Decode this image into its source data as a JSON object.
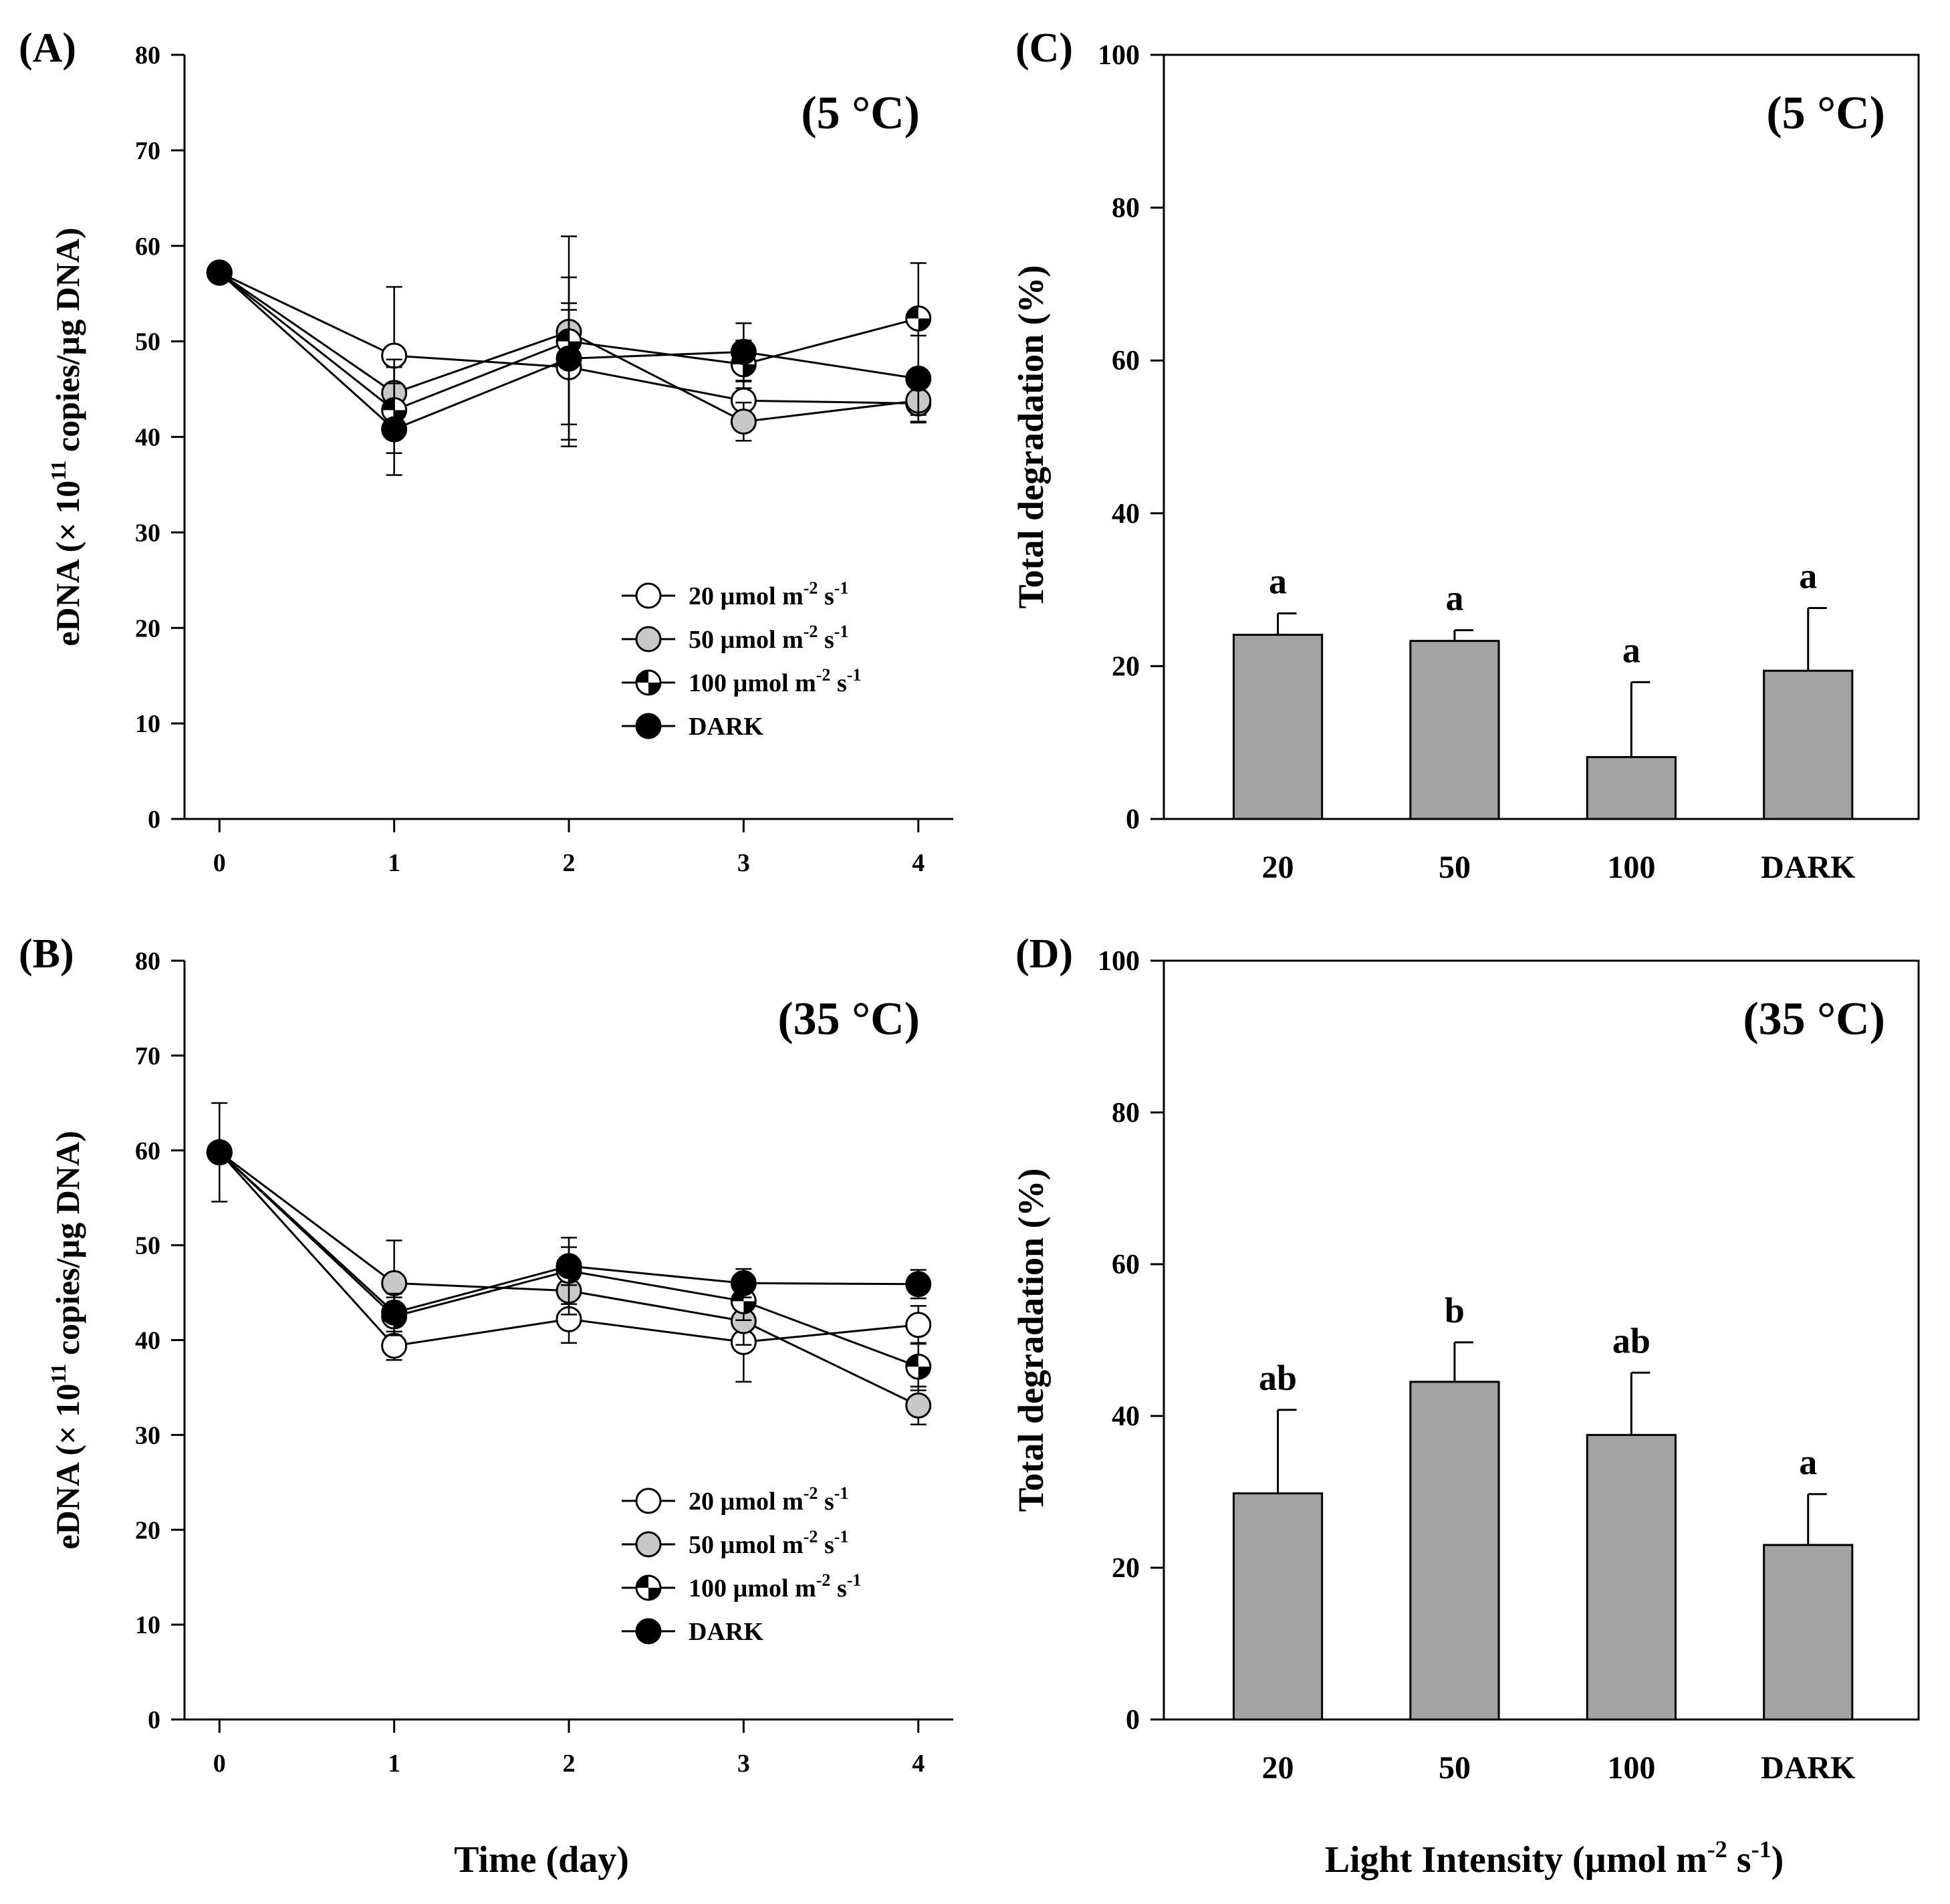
{
  "colors": {
    "ink": "#000000",
    "bar_fill": "#a3a3a3",
    "gray_marker": "#c8c8c8",
    "white_marker": "#ffffff"
  },
  "shared_labels": {
    "time_xlabel": "Time (day)",
    "light_xlabel_main": "Light Intensity (µmol m",
    "light_xlabel_sup1": "-2",
    "light_xlabel_mid": " s",
    "light_xlabel_sup2": "-1",
    "light_xlabel_end": ")"
  },
  "chart_data": [
    {
      "id": "A",
      "panel_label": "(A)",
      "type": "line",
      "annotation": "(5 °C)",
      "ylabel_pre": "eDNA (× 10",
      "ylabel_sup": "11",
      "ylabel_post": " copies/µg DNA)",
      "xlabel": "Time (day)",
      "x": [
        0,
        1,
        2,
        3,
        4
      ],
      "xlim": [
        -0.2,
        4.2
      ],
      "ylim": [
        0,
        80
      ],
      "xticks": [
        "0",
        "1",
        "2",
        "3",
        "4"
      ],
      "yticks": [
        0,
        10,
        20,
        30,
        40,
        50,
        60,
        70,
        80
      ],
      "legend": "inside-lower-right",
      "series": [
        {
          "name": "20 µmol m-2 s-1",
          "label_main": "20 µmol m",
          "sup1": "-2",
          "label_mid": " s",
          "sup2": "-1",
          "marker": "white",
          "values": [
            57.2,
            48.5,
            47.3,
            43.8,
            43.5
          ],
          "err": [
            0,
            7.2,
            6.0,
            2.0,
            2.0
          ]
        },
        {
          "name": "50 µmol m-2 s-1",
          "label_main": "50 µmol m",
          "sup1": "-2",
          "label_mid": " s",
          "sup2": "-1",
          "marker": "gray",
          "values": [
            57.2,
            44.6,
            51.0,
            41.6,
            43.8
          ],
          "err": [
            0,
            3.5,
            3.0,
            2.0,
            1.5
          ]
        },
        {
          "name": "100 µmol m-2 s-1",
          "label_main": "100 µmol m",
          "sup1": "-2",
          "label_mid": " s",
          "sup2": "-1",
          "marker": "half",
          "values": [
            57.2,
            42.8,
            50.0,
            47.6,
            52.4
          ],
          "err": [
            0,
            4.5,
            11.0,
            2.5,
            5.8
          ]
        },
        {
          "name": "DARK",
          "label_main": "DARK",
          "sup1": "",
          "label_mid": "",
          "sup2": "",
          "marker": "black",
          "values": [
            57.2,
            40.8,
            48.2,
            48.9,
            46.1
          ],
          "err": [
            0,
            4.8,
            8.5,
            3.0,
            4.5
          ]
        }
      ]
    },
    {
      "id": "B",
      "panel_label": "(B)",
      "type": "line",
      "annotation": "(35 °C)",
      "ylabel_pre": "eDNA (× 10",
      "ylabel_sup": "11",
      "ylabel_post": " copies/µg DNA)",
      "xlabel": "Time (day)",
      "x": [
        0,
        1,
        2,
        3,
        4
      ],
      "xlim": [
        -0.2,
        4.2
      ],
      "ylim": [
        0,
        80
      ],
      "xticks": [
        "0",
        "1",
        "2",
        "3",
        "4"
      ],
      "yticks": [
        0,
        10,
        20,
        30,
        40,
        50,
        60,
        70,
        80
      ],
      "legend": "inside-lower-right",
      "series": [
        {
          "name": "20 µmol m-2 s-1",
          "label_main": "20 µmol m",
          "sup1": "-2",
          "label_mid": " s",
          "sup2": "-1",
          "marker": "white",
          "values": [
            59.8,
            39.4,
            42.2,
            39.8,
            41.6
          ],
          "err": [
            0,
            1.5,
            2.5,
            4.2,
            2.0
          ]
        },
        {
          "name": "50 µmol m-2 s-1",
          "label_main": "50 µmol m",
          "sup1": "-2",
          "label_mid": " s",
          "sup2": "-1",
          "marker": "gray",
          "values": [
            59.8,
            46.0,
            45.2,
            42.0,
            33.1
          ],
          "err": [
            0,
            4.5,
            2.5,
            2.5,
            2.0
          ]
        },
        {
          "name": "100 µmol m-2 s-1",
          "label_main": "100 µmol m",
          "sup1": "-2",
          "label_mid": " s",
          "sup2": "-1",
          "marker": "half",
          "values": [
            59.8,
            42.5,
            47.3,
            44.1,
            37.2
          ],
          "err": [
            0,
            2.0,
            3.5,
            2.0,
            2.5
          ]
        },
        {
          "name": "DARK",
          "label_main": "DARK",
          "sup1": "",
          "label_mid": "",
          "sup2": "",
          "marker": "black",
          "values": [
            59.8,
            42.9,
            47.8,
            46.0,
            45.9
          ],
          "err": [
            5.2,
            2.0,
            2.0,
            1.5,
            1.5
          ]
        }
      ]
    },
    {
      "id": "C",
      "panel_label": "(C)",
      "type": "bar",
      "annotation": "(5 °C)",
      "ylabel": "Total degradation (%)",
      "categories": [
        "20",
        "50",
        "100",
        "DARK"
      ],
      "values": [
        24.1,
        23.3,
        8.1,
        19.4
      ],
      "err": [
        2.8,
        1.4,
        9.8,
        8.2
      ],
      "letters": [
        "a",
        "a",
        "a",
        "a"
      ],
      "ylim": [
        0,
        100
      ],
      "yticks": [
        0,
        20,
        40,
        60,
        80,
        100
      ]
    },
    {
      "id": "D",
      "panel_label": "(D)",
      "type": "bar",
      "annotation": "(35 °C)",
      "ylabel": "Total degradation (%)",
      "categories": [
        "20",
        "50",
        "100",
        "DARK"
      ],
      "values": [
        29.8,
        44.5,
        37.5,
        23.0
      ],
      "err": [
        11.0,
        5.2,
        8.2,
        6.7
      ],
      "letters": [
        "ab",
        "b",
        "ab",
        "a"
      ],
      "ylim": [
        0,
        100
      ],
      "yticks": [
        0,
        20,
        40,
        60,
        80,
        100
      ]
    }
  ]
}
